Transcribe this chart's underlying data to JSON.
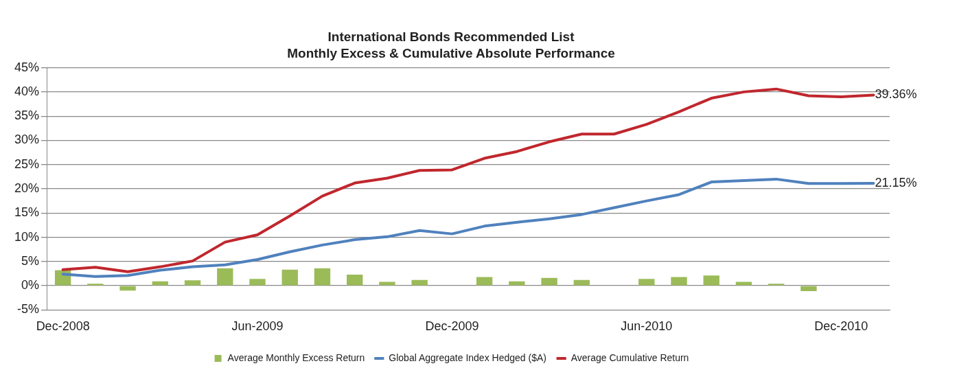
{
  "chart_data": {
    "type": "bar",
    "title": "International Bonds Recommended List",
    "subtitle": "Monthly Excess & Cumulative Absolute Performance",
    "categories": [
      "Dec-2008",
      null,
      null,
      null,
      null,
      null,
      "Jun-2009",
      null,
      null,
      null,
      null,
      null,
      "Dec-2009",
      null,
      null,
      null,
      null,
      null,
      "Jun-2010",
      null,
      null,
      null,
      null,
      null,
      "Dec-2010",
      null
    ],
    "series": [
      {
        "name": "Average Monthly Excess Return",
        "color": "#9bbb59",
        "values": [
          3.2,
          0.4,
          -1.0,
          0.9,
          1.1,
          3.6,
          1.4,
          3.3,
          3.6,
          2.3,
          0.8,
          1.2,
          0,
          1.8,
          0.9,
          1.6,
          1.2,
          0,
          1.4,
          1.8,
          2.1,
          0.8,
          0.4,
          -1.1,
          0,
          0.1
        ]
      },
      {
        "name": "Global Aggregate Index Hedged ($A)",
        "type": "line",
        "color": "#4f81bd",
        "values": [
          2.4,
          1.9,
          2.1,
          3.2,
          3.9,
          4.3,
          5.4,
          7.0,
          8.4,
          9.5,
          10.1,
          11.4,
          10.7,
          12.3,
          13.1,
          13.8,
          14.7,
          16.1,
          17.5,
          18.8,
          21.4,
          21.7,
          22.0,
          21.1,
          21.1,
          21.15
        ],
        "value_labels": [
          null,
          null,
          null,
          null,
          null,
          null,
          null,
          null,
          null,
          null,
          null,
          null,
          null,
          null,
          null,
          null,
          null,
          null,
          null,
          null,
          null,
          null,
          null,
          null,
          null,
          "21.15%"
        ]
      },
      {
        "name": "Average Cumulative Return",
        "type": "line",
        "color": "#c0272d",
        "values": [
          3.3,
          3.8,
          2.9,
          3.9,
          5.1,
          9.0,
          10.5,
          14.4,
          18.5,
          21.2,
          22.2,
          23.8,
          23.9,
          26.3,
          27.7,
          29.7,
          31.3,
          31.3,
          33.3,
          35.9,
          38.7,
          40.0,
          40.6,
          39.2,
          39.0,
          39.36
        ],
        "value_labels": [
          null,
          null,
          null,
          null,
          null,
          null,
          null,
          null,
          null,
          null,
          null,
          null,
          null,
          null,
          null,
          null,
          null,
          null,
          null,
          null,
          null,
          null,
          null,
          null,
          null,
          "39.36%"
        ]
      }
    ],
    "ylim": [
      -5,
      45
    ],
    "yticks": [
      {
        "value": -5,
        "label": "-5%"
      },
      {
        "value": 0,
        "label": "0%"
      },
      {
        "value": 5,
        "label": "5%"
      },
      {
        "value": 10,
        "label": "10%"
      },
      {
        "value": 15,
        "label": "15%"
      },
      {
        "value": 20,
        "label": "20%"
      },
      {
        "value": 25,
        "label": "25%"
      },
      {
        "value": 30,
        "label": "30%"
      },
      {
        "value": 35,
        "label": "35%"
      },
      {
        "value": 40,
        "label": "40%"
      },
      {
        "value": 45,
        "label": "45%"
      }
    ],
    "grid": "y",
    "legend": "bottom",
    "marker": "none",
    "line_style": "solid"
  }
}
